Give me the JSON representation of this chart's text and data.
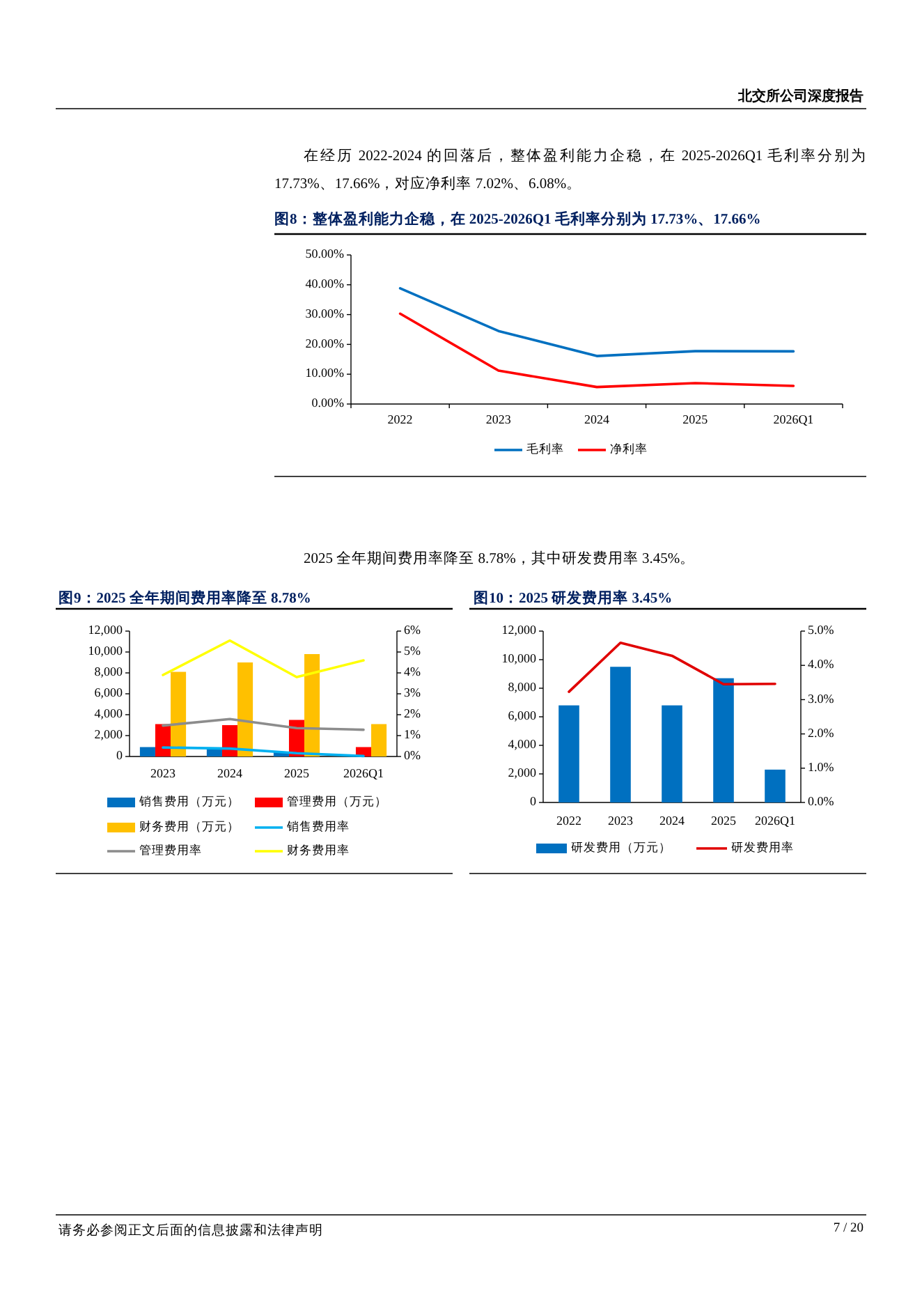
{
  "chart_data": [
    {
      "type": "line",
      "title": "图8：整体盈利能力企稳，在 2025-2026Q1 毛利率分别为 17.73%、17.66%",
      "annotations": [
        "北交所公司深度报告",
        "在经历 2022-2024 的回落后，整体盈利能力企稳，在 2025-2026Q1 毛利率分别为 17.73%、17.66%，对应净利率 7.02%、6.08%。"
      ],
      "categories": [
        "2022",
        "2023",
        "2024",
        "2025",
        "2026Q1"
      ],
      "series": [
        {
          "name": "毛利率",
          "color": "#0070c0",
          "values": [
            38.8,
            24.5,
            16.1,
            17.73,
            17.66
          ]
        },
        {
          "name": "净利率",
          "color": "#ff0000",
          "values": [
            30.3,
            11.2,
            5.7,
            7.02,
            6.08
          ]
        }
      ],
      "ylim": [
        0,
        50
      ],
      "yticks": [
        {
          "value": 0,
          "label": "0.00%"
        },
        {
          "value": 10,
          "label": "10.00%"
        },
        {
          "value": 20,
          "label": "20.00%"
        },
        {
          "value": 30,
          "label": "30.00%"
        },
        {
          "value": 40,
          "label": "40.00%"
        },
        {
          "value": 50,
          "label": "50.00%"
        }
      ],
      "legend": "bottom"
    },
    {
      "type": "bar",
      "title": "图9：2025 全年期间费用率降至 8.78%",
      "annotations": [
        "2025 全年期间费用率降至 8.78%，其中研发费用率 3.45%。"
      ],
      "categories": [
        "2023",
        "2024",
        "2025",
        "2026Q1"
      ],
      "series": [
        {
          "name": "销售费用（万元）",
          "color": "#0070c0",
          "values": [
            900,
            700,
            400,
            null
          ]
        },
        {
          "name": "管理费用（万元）",
          "color": "#ff0000",
          "values": [
            3100,
            3000,
            3500,
            900
          ]
        },
        {
          "name": "财务费用（万元）",
          "color": "#ffc000",
          "values": [
            8100,
            9000,
            9800,
            3100
          ]
        },
        {
          "name": "销售费用率",
          "type": "line",
          "axis": "y2",
          "color": "#00b0f0",
          "values": [
            0.43,
            0.38,
            0.16,
            0.02
          ]
        },
        {
          "name": "管理费用率",
          "type": "line",
          "axis": "y2",
          "color": "#8c8c8c",
          "values": [
            1.48,
            1.79,
            1.36,
            1.28
          ]
        },
        {
          "name": "财务费用率",
          "type": "line",
          "axis": "y2",
          "color": "#ffff00",
          "values": [
            3.9,
            5.55,
            3.8,
            4.6
          ]
        }
      ],
      "ylim": [
        0,
        12000
      ],
      "yticks": [
        {
          "value": 0,
          "label": "0"
        },
        {
          "value": 2000,
          "label": "2,000"
        },
        {
          "value": 4000,
          "label": "4,000"
        },
        {
          "value": 6000,
          "label": "6,000"
        },
        {
          "value": 8000,
          "label": "8,000"
        },
        {
          "value": 10000,
          "label": "10,000"
        },
        {
          "value": 12000,
          "label": "12,000"
        }
      ],
      "y2lim": [
        0,
        6
      ],
      "y2ticks": [
        {
          "value": 0,
          "label": "0%"
        },
        {
          "value": 1,
          "label": "1%"
        },
        {
          "value": 2,
          "label": "2%"
        },
        {
          "value": 3,
          "label": "3%"
        },
        {
          "value": 4,
          "label": "4%"
        },
        {
          "value": 5,
          "label": "5%"
        },
        {
          "value": 6,
          "label": "6%"
        }
      ],
      "legend": "bottom"
    },
    {
      "type": "bar",
      "title": "图10：2025 研发费用率 3.45%",
      "annotations": [
        "请务必参阅正文后面的信息披露和法律声明",
        "7 / 20"
      ],
      "categories": [
        "2022",
        "2023",
        "2024",
        "2025",
        "2026Q1"
      ],
      "series": [
        {
          "name": "研发费用（万元）",
          "color": "#0070c0",
          "values": [
            6800,
            9500,
            6800,
            8700,
            2300
          ]
        },
        {
          "name": "研发费用率",
          "type": "line",
          "axis": "y2",
          "color": "#e00000",
          "values": [
            3.23,
            4.66,
            4.28,
            3.45,
            3.46
          ]
        }
      ],
      "ylim": [
        0,
        12000
      ],
      "yticks": [
        {
          "value": 0,
          "label": "0"
        },
        {
          "value": 2000,
          "label": "2,000"
        },
        {
          "value": 4000,
          "label": "4,000"
        },
        {
          "value": 6000,
          "label": "6,000"
        },
        {
          "value": 8000,
          "label": "8,000"
        },
        {
          "value": 10000,
          "label": "10,000"
        },
        {
          "value": 12000,
          "label": "12,000"
        }
      ],
      "y2lim": [
        0,
        5
      ],
      "y2ticks": [
        {
          "value": 0,
          "label": "0.0%"
        },
        {
          "value": 1,
          "label": "1.0%"
        },
        {
          "value": 2,
          "label": "2.0%"
        },
        {
          "value": 3,
          "label": "3.0%"
        },
        {
          "value": 4,
          "label": "4.0%"
        },
        {
          "value": 5,
          "label": "5.0%"
        }
      ],
      "legend": "bottom"
    }
  ]
}
